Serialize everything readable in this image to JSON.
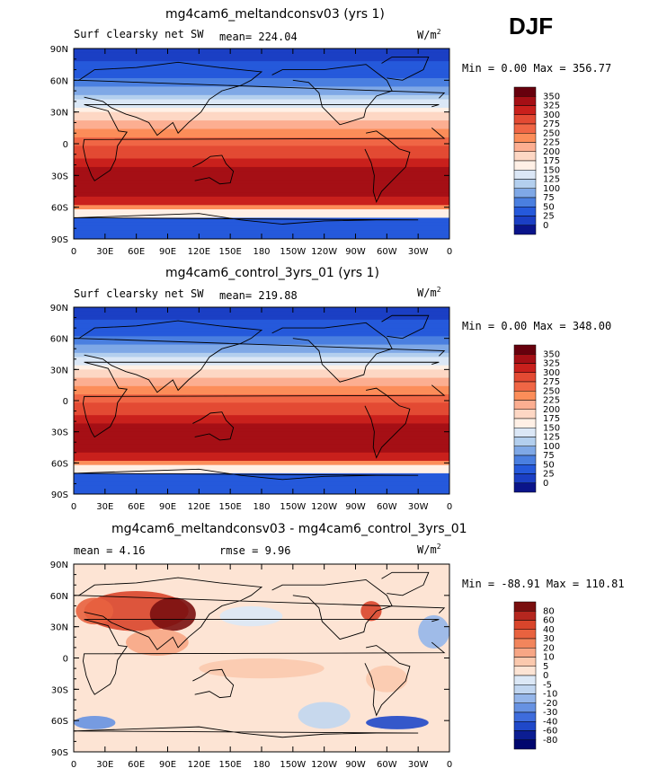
{
  "season": "DJF",
  "panels": [
    {
      "title": "mg4cam6_meltandconsv03 (yrs 1)",
      "variable": "Surf clearsky net SW",
      "stat": "mean= 224.04",
      "stat2": "",
      "units": "W/m",
      "units_sup": "2",
      "minmax": "Min =    0.00 Max = 356.77",
      "colorbar_labels": [
        "350",
        "325",
        "300",
        "275",
        "250",
        "225",
        "200",
        "175",
        "150",
        "125",
        "100",
        "75",
        "50",
        "25",
        "0"
      ]
    },
    {
      "title": "mg4cam6_control_3yrs_01 (yrs 1)",
      "variable": "Surf clearsky net SW",
      "stat": "mean= 219.88",
      "stat2": "",
      "units": "W/m",
      "units_sup": "2",
      "minmax": "Min =    0.00 Max = 348.00",
      "colorbar_labels": [
        "350",
        "325",
        "300",
        "275",
        "250",
        "225",
        "200",
        "175",
        "150",
        "125",
        "100",
        "75",
        "50",
        "25",
        "0"
      ]
    },
    {
      "title": "mg4cam6_meltandconsv03 - mg4cam6_control_3yrs_01",
      "variable": "",
      "stat": "mean =    4.16",
      "stat2": "rmse =    9.96",
      "units": "W/m",
      "units_sup": "2",
      "minmax": "Min = -88.91 Max = 110.81",
      "colorbar_labels": [
        "80",
        "60",
        "40",
        "30",
        "20",
        "10",
        "5",
        "0",
        "-5",
        "-10",
        "-20",
        "-30",
        "-40",
        "-60",
        "-80"
      ]
    }
  ],
  "axes": {
    "lat_ticks": [
      "90N",
      "60N",
      "30N",
      "0",
      "30S",
      "60S",
      "90S"
    ],
    "lon_ticks": [
      "0",
      "30E",
      "60E",
      "90E",
      "120E",
      "150E",
      "180",
      "150W",
      "120W",
      "90W",
      "60W",
      "30W",
      "0"
    ]
  },
  "colors": {
    "abs_scale": [
      "#67000d",
      "#a50f15",
      "#c9201c",
      "#e34a33",
      "#f06645",
      "#fc8d59",
      "#fcae91",
      "#fdd7c4",
      "#fff0e6",
      "#dbe7f6",
      "#b3cfee",
      "#7fa8e6",
      "#4a7fe0",
      "#2559db",
      "#1b3fc4",
      "#0a148a"
    ],
    "diff_scale": [
      "#7a0f0f",
      "#b5271f",
      "#d9452b",
      "#e8623f",
      "#f2855c",
      "#f7a685",
      "#fbc9ae",
      "#fde4d4",
      "#dce8f6",
      "#c1d6f0",
      "#95b6ea",
      "#6792e2",
      "#3e6cdc",
      "#1f48c9",
      "#0b1d92",
      "#00066e"
    ]
  }
}
